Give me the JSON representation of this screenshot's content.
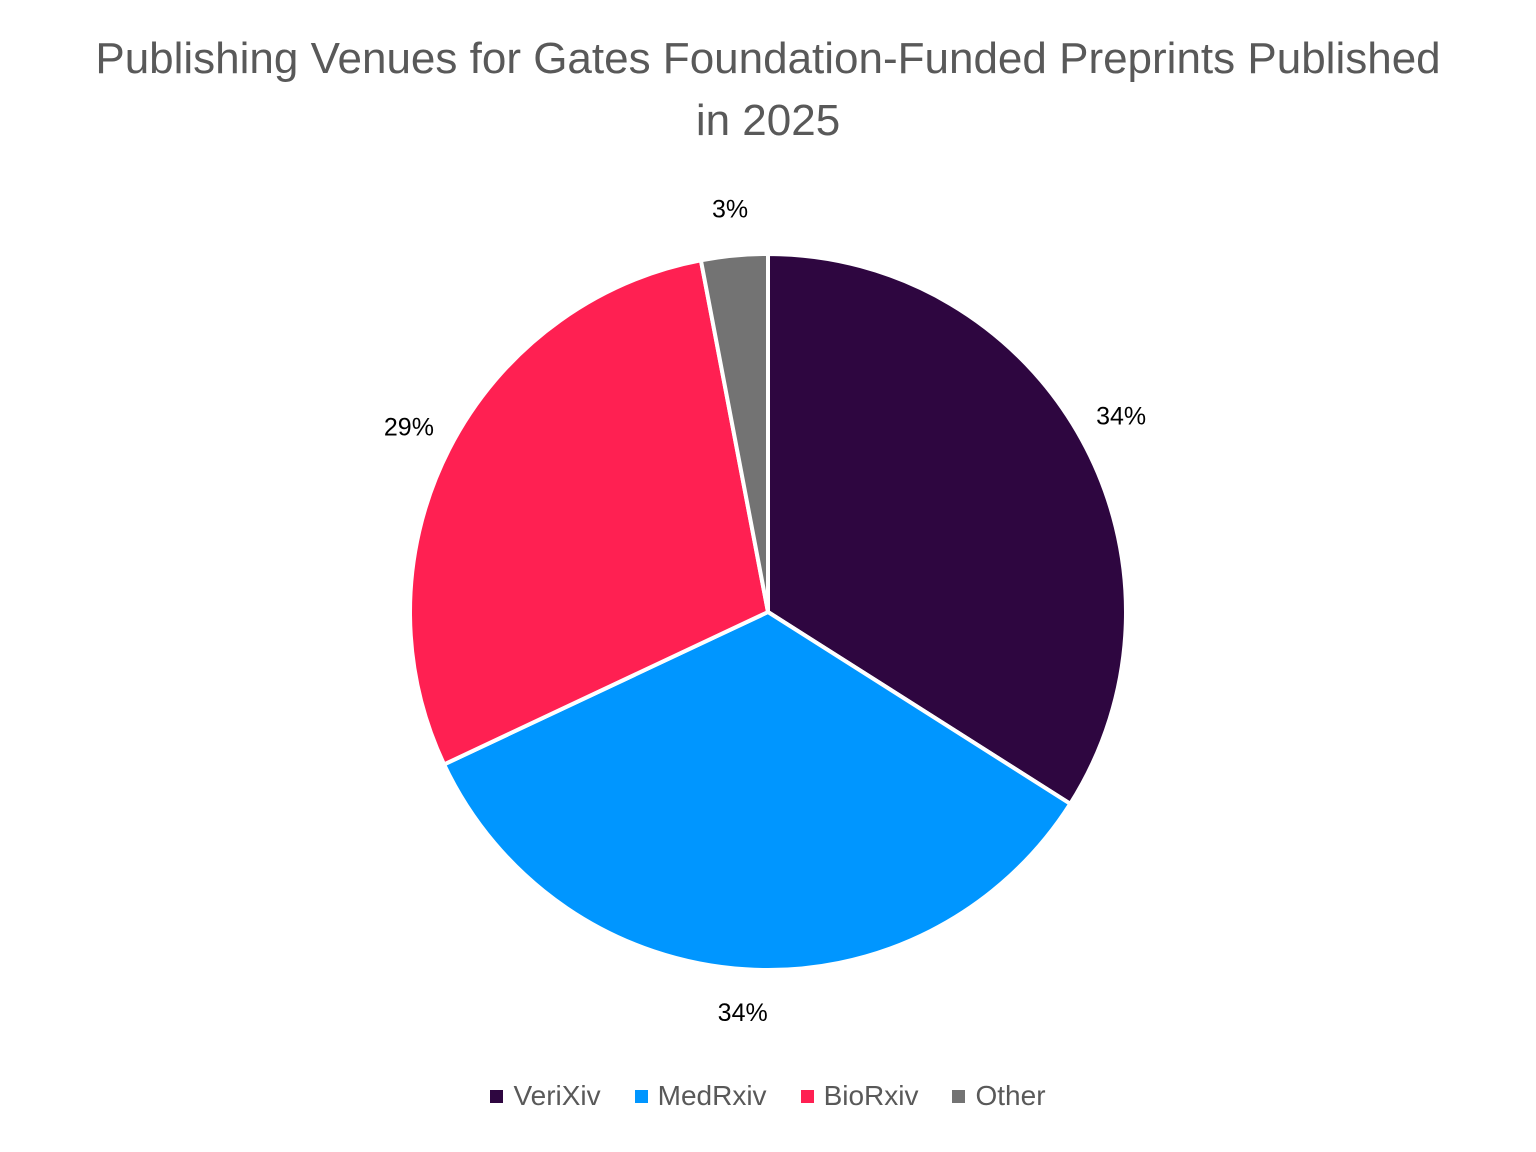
{
  "chart_data": {
    "type": "pie",
    "title": "Publishing Venues for Gates Foundation-Funded Preprints Published in 2025",
    "categories": [
      "VeriXiv",
      "MedRxiv",
      "BioRxiv",
      "Other"
    ],
    "values": [
      34,
      34,
      29,
      3
    ],
    "value_labels": [
      "34%",
      "34%",
      "29%",
      "3%"
    ],
    "colors": [
      "#2e0640",
      "#0096ff",
      "#ff2052",
      "#737373"
    ],
    "legend": "bottom"
  }
}
